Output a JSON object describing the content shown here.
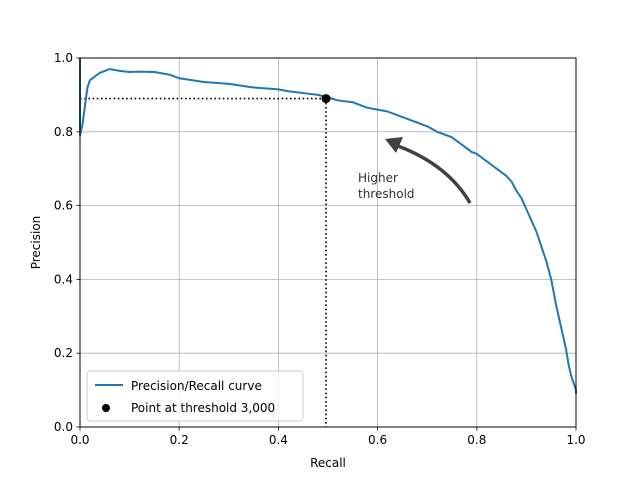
{
  "chart_data": {
    "type": "line",
    "xlabel": "Recall",
    "ylabel": "Precision",
    "xlim": [
      0,
      1
    ],
    "ylim": [
      0,
      1
    ],
    "xticks": [
      "0.0",
      "0.2",
      "0.4",
      "0.6",
      "0.8",
      "1.0"
    ],
    "yticks": [
      "0.0",
      "0.2",
      "0.4",
      "0.6",
      "0.8",
      "1.0"
    ],
    "grid": true,
    "legend_position": "lower-left",
    "series": [
      {
        "name": "Precision/Recall curve",
        "color": "#1f77b4",
        "x": [
          1.0,
          1.0,
          0.995,
          0.99,
          0.985,
          0.98,
          0.975,
          0.97,
          0.96,
          0.95,
          0.94,
          0.93,
          0.92,
          0.91,
          0.9,
          0.89,
          0.88,
          0.87,
          0.86,
          0.85,
          0.84,
          0.83,
          0.82,
          0.81,
          0.8,
          0.79,
          0.78,
          0.77,
          0.76,
          0.75,
          0.72,
          0.7,
          0.68,
          0.65,
          0.62,
          0.6,
          0.58,
          0.55,
          0.52,
          0.5,
          0.48,
          0.45,
          0.42,
          0.4,
          0.35,
          0.3,
          0.25,
          0.2,
          0.18,
          0.15,
          0.12,
          0.1,
          0.08,
          0.06,
          0.05,
          0.04,
          0.03,
          0.02,
          0.015,
          0.01,
          0.005,
          0.0,
          0.0
        ],
        "y": [
          0.09,
          0.1,
          0.12,
          0.14,
          0.17,
          0.21,
          0.24,
          0.27,
          0.33,
          0.4,
          0.45,
          0.49,
          0.53,
          0.56,
          0.59,
          0.62,
          0.64,
          0.665,
          0.68,
          0.69,
          0.7,
          0.71,
          0.72,
          0.73,
          0.74,
          0.745,
          0.755,
          0.765,
          0.775,
          0.785,
          0.8,
          0.815,
          0.825,
          0.84,
          0.855,
          0.86,
          0.865,
          0.88,
          0.885,
          0.893,
          0.9,
          0.905,
          0.91,
          0.915,
          0.92,
          0.93,
          0.935,
          0.945,
          0.955,
          0.962,
          0.963,
          0.962,
          0.965,
          0.97,
          0.965,
          0.96,
          0.95,
          0.94,
          0.92,
          0.87,
          0.82,
          0.79,
          1.0
        ]
      },
      {
        "name": "Point at threshold 3,000",
        "color": "#000000",
        "x": [
          0.496
        ],
        "y": [
          0.89
        ]
      }
    ],
    "reference_lines": {
      "point_x": 0.496,
      "point_y": 0.89
    },
    "annotation": {
      "lines": [
        "Higher",
        "threshold"
      ],
      "color": "#404040"
    }
  }
}
